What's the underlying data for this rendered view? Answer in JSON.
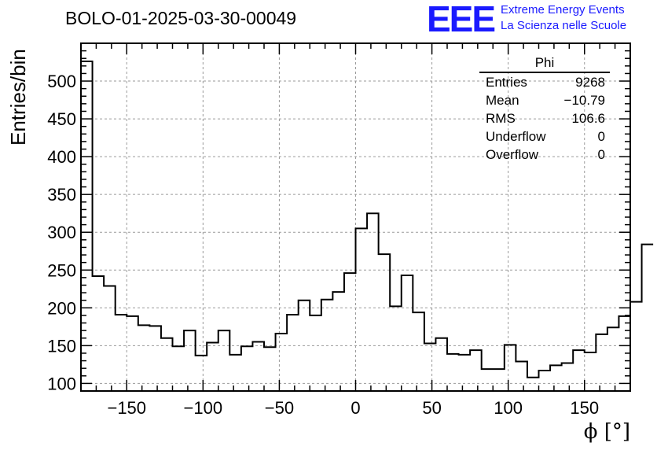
{
  "title": "BOLO-01-2025-03-30-00049",
  "logo": {
    "mark": "EEE",
    "line1": "Extreme Energy Events",
    "line2": "La Scienza nelle Scuole",
    "color": "#1a1aff"
  },
  "stats_box": {
    "name": "Phi",
    "rows": [
      {
        "label": "Entries",
        "value": "9268"
      },
      {
        "label": "Mean",
        "value": "−10.79"
      },
      {
        "label": "RMS",
        "value": "106.6"
      },
      {
        "label": "Underflow",
        "value": "0"
      },
      {
        "label": "Overflow",
        "value": "0"
      }
    ]
  },
  "chart_data": {
    "type": "bar",
    "style": "step-histogram",
    "xlabel": "ϕ [°]",
    "ylabel": "Entries/bin",
    "xlim": [
      -180,
      180
    ],
    "ylim": [
      90,
      550
    ],
    "grid": true,
    "x_ticks": [
      -150,
      -100,
      -50,
      0,
      50,
      100,
      150
    ],
    "x_tick_labels": [
      "−150",
      "−100",
      "−50",
      "0",
      "50",
      "100",
      "150"
    ],
    "y_ticks": [
      100,
      150,
      200,
      250,
      300,
      350,
      400,
      450,
      500
    ],
    "bin_edges_start": -180,
    "bin_width": 7.5,
    "values": [
      526,
      242,
      229,
      191,
      189,
      177,
      176,
      160,
      149,
      170,
      137,
      154,
      170,
      138,
      149,
      155,
      148,
      166,
      191,
      210,
      190,
      211,
      221,
      246,
      305,
      325,
      271,
      202,
      243,
      194,
      153,
      160,
      139,
      138,
      144,
      119,
      119,
      151,
      129,
      108,
      117,
      124,
      127,
      144,
      141,
      165,
      174,
      189,
      208,
      284
    ],
    "line_color": "#000000"
  }
}
